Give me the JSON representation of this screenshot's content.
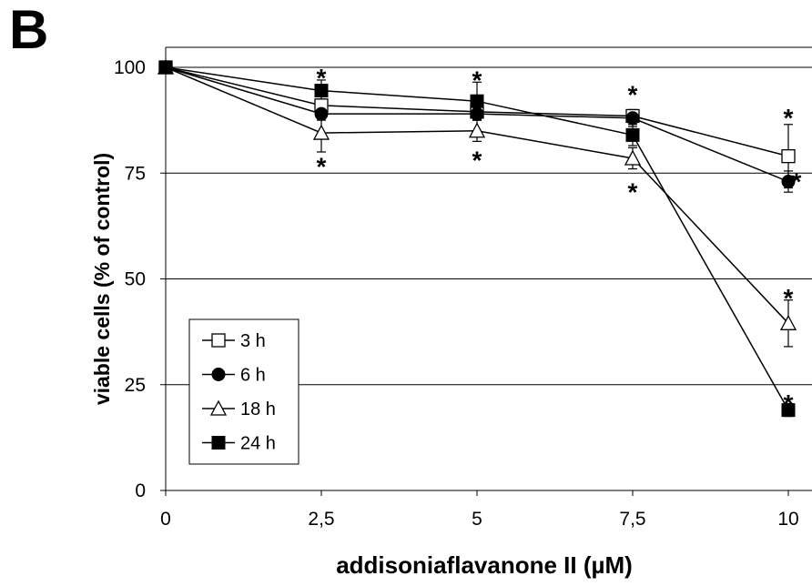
{
  "panel_label": "B",
  "chart_data": {
    "type": "line",
    "xlabel": "addisoniaflavanone II (µM)",
    "ylabel": "viable cells (% of control)",
    "x": [
      0,
      2.5,
      5,
      7.5,
      10
    ],
    "x_tick_labels": [
      "0",
      "2,5",
      "5",
      "7,5",
      "10"
    ],
    "xlim": [
      0,
      10
    ],
    "ylim": [
      0,
      100
    ],
    "y_ticks": [
      0,
      25,
      50,
      75,
      100
    ],
    "y_tick_labels": [
      "0",
      "25",
      "50",
      "75",
      "100"
    ],
    "grid": "horizontal",
    "legend_position": "bottom-left",
    "series": [
      {
        "name": "3 h",
        "marker": "open-square",
        "values": [
          100,
          91,
          89.5,
          88.5,
          79
        ],
        "errors": [
          0.8,
          1.5,
          1.2,
          1.5,
          7.5
        ]
      },
      {
        "name": "6 h",
        "marker": "filled-circle",
        "values": [
          100,
          89,
          89,
          88,
          73
        ],
        "errors": [
          0.8,
          1.5,
          1.2,
          2,
          2.5
        ]
      },
      {
        "name": "18 h",
        "marker": "open-triangle",
        "values": [
          100,
          84.5,
          85,
          78.5,
          39.5
        ],
        "errors": [
          0.8,
          4.5,
          2.5,
          2.5,
          5.5
        ]
      },
      {
        "name": "24 h",
        "marker": "filled-square",
        "values": [
          100,
          94.5,
          92,
          84,
          19
        ],
        "errors": [
          0.8,
          2.5,
          4.5,
          2.5,
          1.5
        ]
      }
    ],
    "annotations": [
      {
        "text": "*",
        "x": 2.5,
        "y": 98.5
      },
      {
        "text": "*",
        "x": 2.5,
        "y": 77.5
      },
      {
        "text": "*",
        "x": 5,
        "y": 98
      },
      {
        "text": "*",
        "x": 5,
        "y": 79
      },
      {
        "text": "*",
        "x": 7.5,
        "y": 94.5
      },
      {
        "text": "*",
        "x": 7.5,
        "y": 71.5
      },
      {
        "text": "*",
        "x": 10,
        "y": 89
      },
      {
        "text": "*",
        "x": 10.13,
        "y": 74
      },
      {
        "text": "*",
        "x": 10,
        "y": 46.5
      },
      {
        "text": "*",
        "x": 10,
        "y": 21.5
      }
    ],
    "colors": {
      "line": "#000000",
      "grid": "#000000",
      "background": "#ffffff"
    }
  }
}
